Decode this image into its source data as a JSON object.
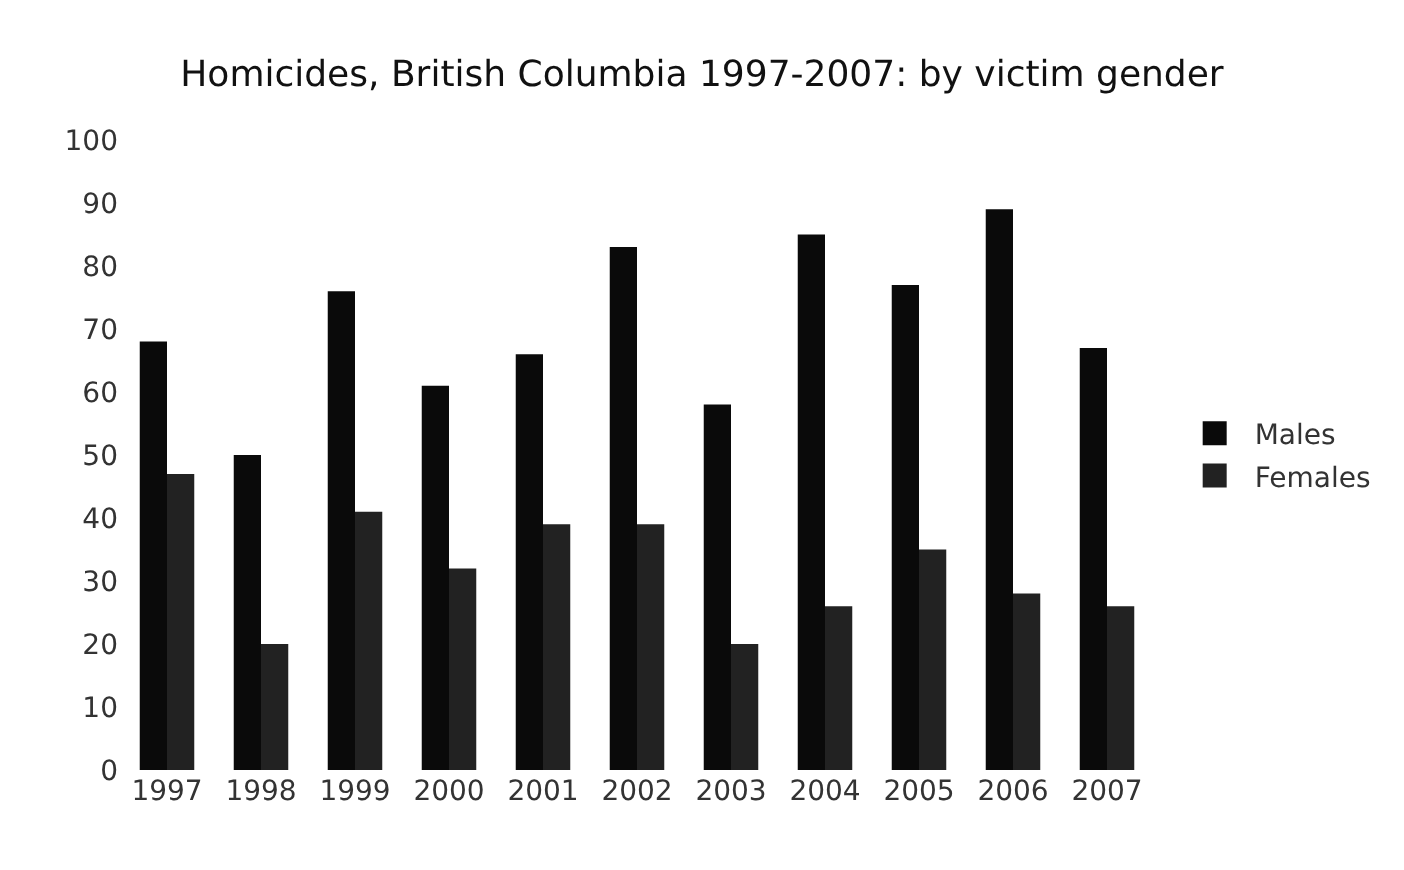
{
  "chart_data": {
    "type": "bar",
    "title": "Homicides, British Columbia 1997-2007: by victim gender",
    "categories": [
      "1997",
      "1998",
      "1999",
      "2000",
      "2001",
      "2002",
      "2003",
      "2004",
      "2005",
      "2006",
      "2007"
    ],
    "series": [
      {
        "name": "Males",
        "color": "#0a0a0a",
        "values": [
          68,
          50,
          76,
          61,
          66,
          83,
          58,
          85,
          77,
          89,
          67
        ]
      },
      {
        "name": "Females",
        "color": "#222222",
        "values": [
          47,
          20,
          41,
          32,
          39,
          39,
          20,
          26,
          35,
          28,
          26
        ]
      }
    ],
    "ylim": [
      0,
      100
    ],
    "yticks": [
      0,
      10,
      20,
      30,
      40,
      50,
      60,
      70,
      80,
      90,
      100
    ],
    "grid": false,
    "legend": "right"
  }
}
